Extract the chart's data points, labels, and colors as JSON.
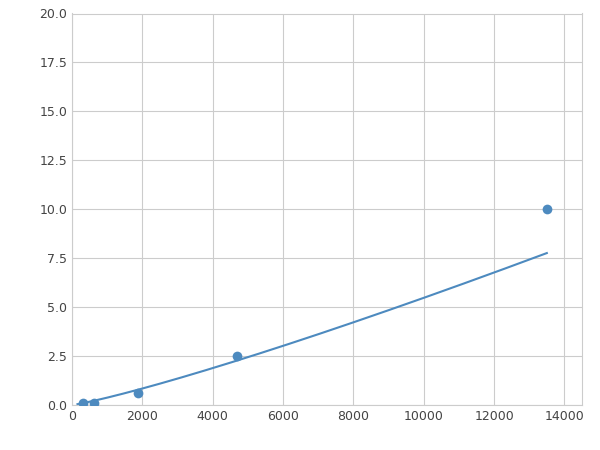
{
  "x": [
    156,
    313,
    625,
    1875,
    4688,
    13500
  ],
  "y": [
    0.07,
    0.1,
    0.12,
    0.6,
    2.5,
    10.0
  ],
  "marker_x": [
    313,
    625,
    1875,
    4688,
    13500
  ],
  "marker_y": [
    0.1,
    0.12,
    0.6,
    2.5,
    10.0
  ],
  "line_color": "#4d8abf",
  "marker_color": "#4d8abf",
  "marker_size": 7,
  "xlim": [
    0,
    14500
  ],
  "ylim": [
    0,
    20
  ],
  "xticks": [
    0,
    2000,
    4000,
    6000,
    8000,
    10000,
    12000,
    14000
  ],
  "yticks": [
    0.0,
    2.5,
    5.0,
    7.5,
    10.0,
    12.5,
    15.0,
    17.5,
    20.0
  ],
  "grid_color": "#cccccc",
  "bg_color": "#ffffff",
  "fig_bg_color": "#ffffff"
}
